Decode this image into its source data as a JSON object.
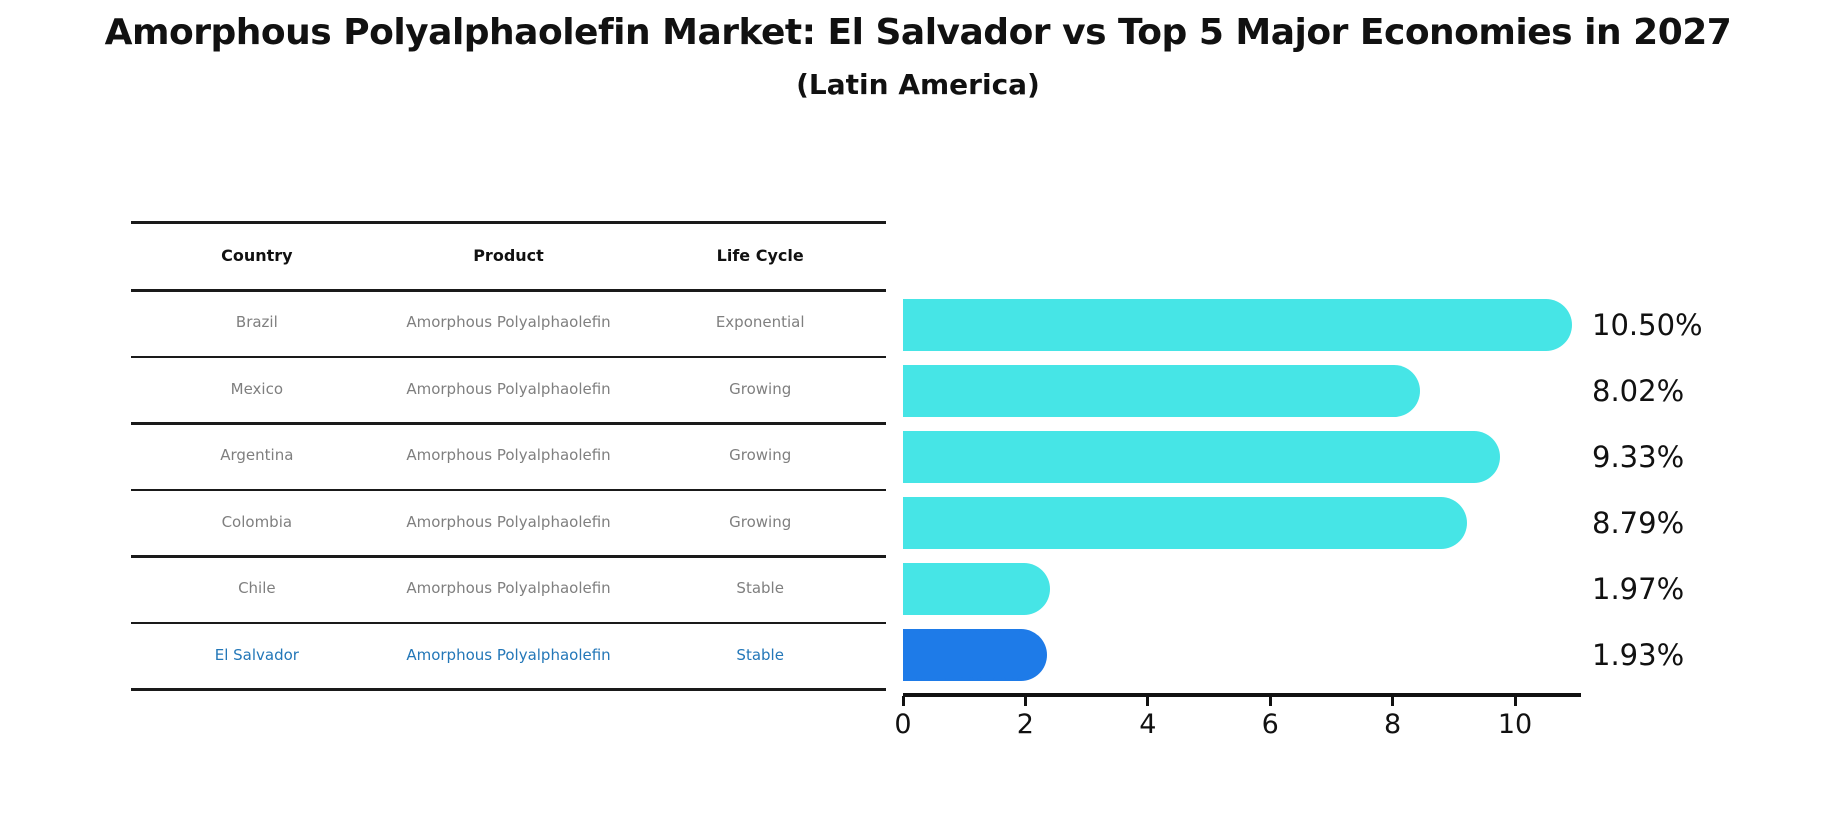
{
  "title": "Amorphous Polyalphaolefin Market: El Salvador vs Top 5 Major Economies in 2027",
  "subtitle": "(Latin America)",
  "table": {
    "headers": [
      "Country",
      "Product",
      "Life Cycle"
    ],
    "rows": [
      {
        "country": "Brazil",
        "product": "Amorphous Polyalphaolefin",
        "life_cycle": "Exponential"
      },
      {
        "country": "Mexico",
        "product": "Amorphous Polyalphaolefin",
        "life_cycle": "Growing"
      },
      {
        "country": "Argentina",
        "product": "Amorphous Polyalphaolefin",
        "life_cycle": "Growing"
      },
      {
        "country": "Colombia",
        "product": "Amorphous Polyalphaolefin",
        "life_cycle": "Growing"
      },
      {
        "country": "Chile",
        "product": "Amorphous Polyalphaolefin",
        "life_cycle": "Stable"
      },
      {
        "country": "El Salvador",
        "product": "Amorphous Polyalphaolefin",
        "life_cycle": "Stable"
      }
    ]
  },
  "chart_data": {
    "type": "bar",
    "orientation": "horizontal",
    "title": "Amorphous Polyalphaolefin Market: El Salvador vs Top 5 Major Economies in 2027 (Latin America)",
    "categories": [
      "Brazil",
      "Mexico",
      "Argentina",
      "Colombia",
      "Chile",
      "El Salvador"
    ],
    "values": [
      10.5,
      8.02,
      9.33,
      8.79,
      1.97,
      1.93
    ],
    "value_labels": [
      "10.50%",
      "8.02%",
      "9.33%",
      "8.79%",
      "1.97%",
      "1.93%"
    ],
    "xticks": [
      "0",
      "2",
      "4",
      "6",
      "8",
      "10"
    ],
    "xlim": [
      0,
      11.05
    ],
    "xlabel": "",
    "ylabel": "",
    "grid": false,
    "legend": false,
    "bar_color": "#46E5E6",
    "highlight_index": 5,
    "highlight_color": "#1E7BE8",
    "highlight_text_color": "#2377B8",
    "row_text_color": "#7F7F7F"
  }
}
